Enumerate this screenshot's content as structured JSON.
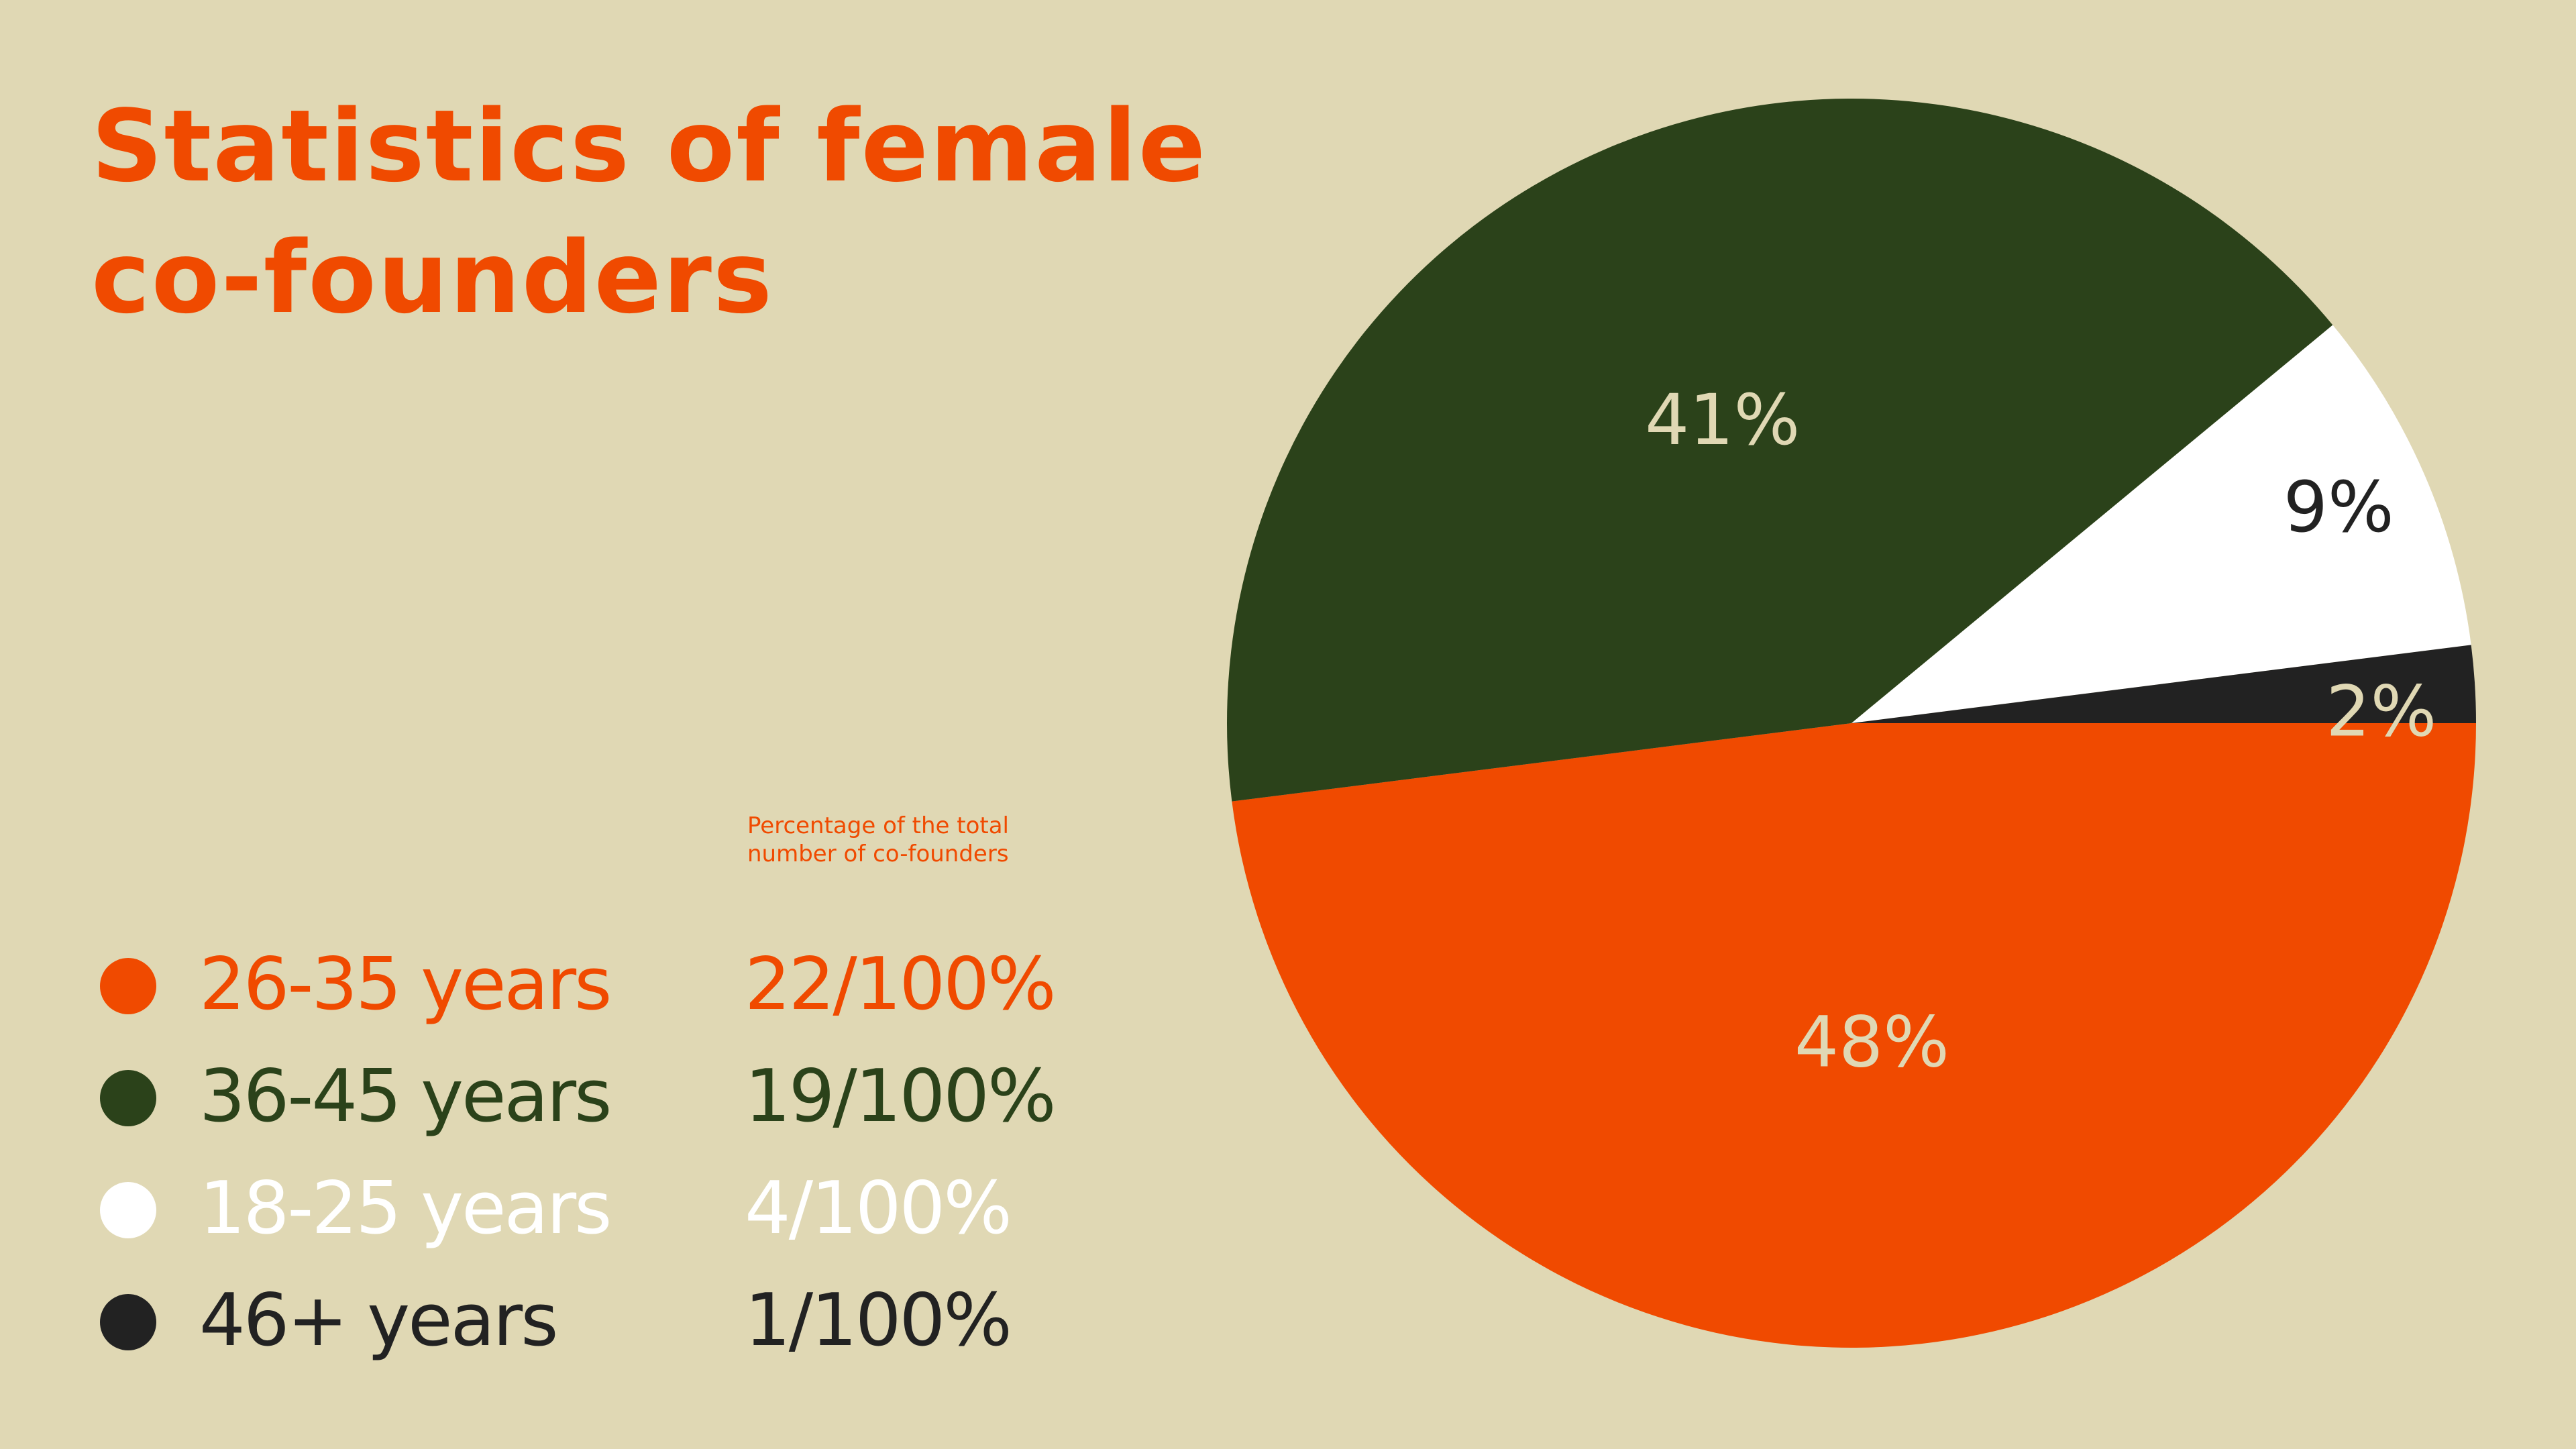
{
  "chart_data": {
    "type": "pie",
    "title": "Statistics of female co-founders",
    "legend_value_header": "Percentage of the total number of co-founders",
    "categories": [
      "26-35 years",
      "36-45 years",
      "18-25 years",
      "46+ years"
    ],
    "values": [
      48,
      41,
      9,
      2
    ],
    "value_labels": [
      "48%",
      "41%",
      "9%",
      "2%"
    ],
    "legend_values": [
      "22/100%",
      "19/100%",
      "4/100%",
      "1/100%"
    ],
    "colors": [
      "#f04a00",
      "#2b421a",
      "#ffffff",
      "#222222"
    ]
  }
}
